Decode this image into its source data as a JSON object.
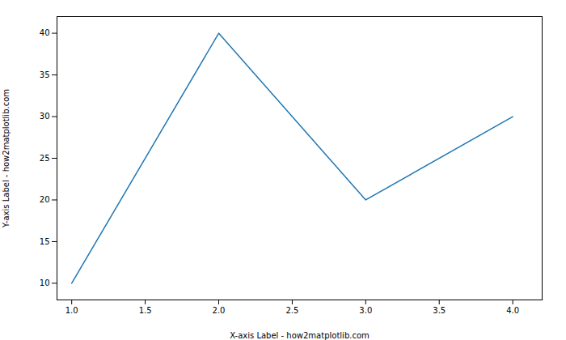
{
  "chart_data": {
    "type": "line",
    "x": [
      1,
      2,
      3,
      4
    ],
    "values": [
      10,
      40,
      20,
      30
    ],
    "color": "#1f77b4",
    "xlabel": "X-axis Label - how2matplotlib.com",
    "ylabel": "Y-axis Label - how2matplotlib.com",
    "xlim": [
      0.9,
      4.2
    ],
    "ylim": [
      8,
      42
    ],
    "xticks": [
      {
        "value": 1,
        "label": "1.0"
      },
      1.5,
      {
        "value": 2,
        "label": "2.0"
      },
      2.5,
      {
        "value": 3,
        "label": "3.0"
      },
      3.5,
      {
        "value": 4,
        "label": "4.0"
      }
    ],
    "yticks": [
      10,
      15,
      20,
      25,
      30,
      35,
      40
    ]
  }
}
